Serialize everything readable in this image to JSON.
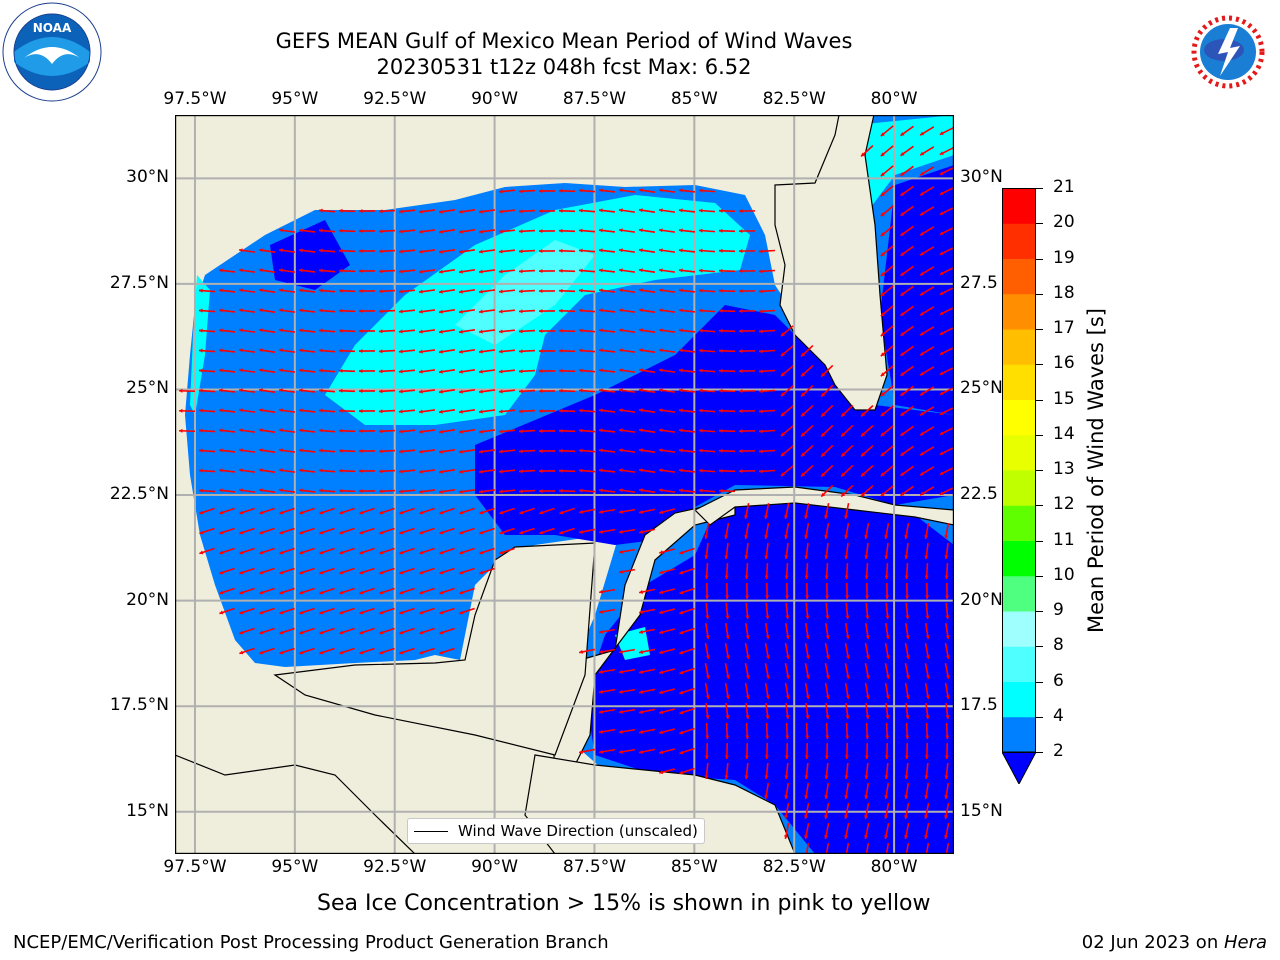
{
  "header": {
    "title_line1": "GEFS MEAN Gulf of Mexico Mean Period of Wind Waves",
    "title_line2": "20230531 t12z 048h fcst   Max: 6.52"
  },
  "logos": {
    "left": {
      "icon": "noaa-logo-icon",
      "text": "NOAA"
    },
    "right": {
      "icon": "national-weather-service-logo-icon"
    }
  },
  "map": {
    "lon_labels": [
      "97.5°W",
      "95°W",
      "92.5°W",
      "90°W",
      "87.5°W",
      "85°W",
      "82.5°W",
      "80°W"
    ],
    "lat_labels_left": [
      "30°N",
      "27.5°N",
      "25°N",
      "22.5°N",
      "20°N",
      "17.5°N",
      "15°N"
    ],
    "lat_labels_right": [
      "30°N",
      "27.5",
      "25°N",
      "22.5",
      "20°N",
      "17.5",
      "15°N"
    ],
    "lon_range": [
      -98,
      -78.5
    ],
    "lat_range": [
      14,
      31.5
    ],
    "land_color": "#efeddb",
    "legend_label": "Wind Wave Direction (unscaled)",
    "arrow_color": "#ff0000"
  },
  "colorbar": {
    "title": "Mean Period of Wind Waves [s]",
    "ticks": [
      "2",
      "4",
      "6",
      "8",
      "9",
      "10",
      "11",
      "12",
      "13",
      "14",
      "15",
      "16",
      "17",
      "18",
      "19",
      "20",
      "21"
    ],
    "colors": [
      "#0000ff",
      "#007fff",
      "#00ffff",
      "#4fffff",
      "#9fffff",
      "#4fff7f",
      "#00ff00",
      "#5fff00",
      "#bfff00",
      "#e8ff00",
      "#ffff00",
      "#ffdf00",
      "#ffbf00",
      "#ff8f00",
      "#ff5f00",
      "#ff2f00",
      "#ff0000"
    ]
  },
  "notes": {
    "sea_ice": "Sea Ice Concentration > 15% is shown in pink to yellow"
  },
  "footer": {
    "left": "NCEP/EMC/Verification Post Processing Product Generation Branch",
    "right_prefix": "02 Jun 2023 on ",
    "right_host": "Hera"
  }
}
